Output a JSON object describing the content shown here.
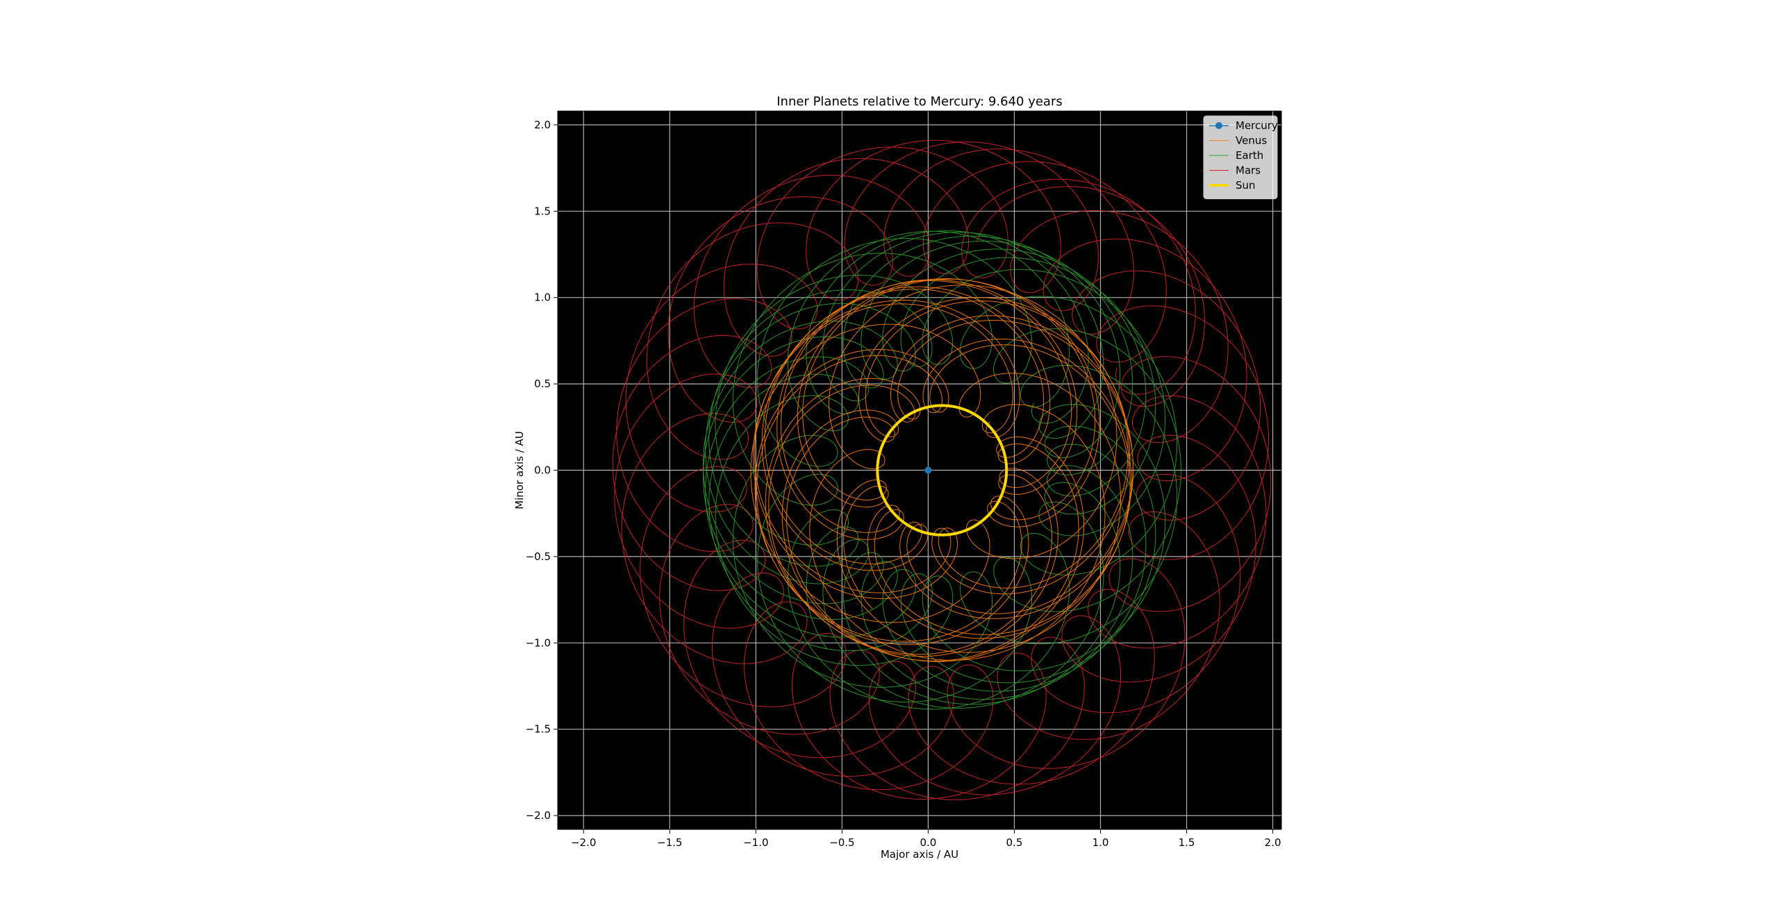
{
  "chart_data": {
    "type": "line",
    "title": "Inner Planets relative to Mercury: 9.640 years",
    "xlabel": "Major axis / AU",
    "ylabel": "Minor axis / AU",
    "xlim": [
      -2.15,
      2.05
    ],
    "ylim": [
      -2.08,
      2.08
    ],
    "grid": true,
    "background": "#000000",
    "legend_position": "top-right",
    "x_ticks": [
      {
        "value": -2.0,
        "label": "−2.0"
      },
      {
        "value": -1.5,
        "label": "−1.5"
      },
      {
        "value": -1.0,
        "label": "−1.0"
      },
      {
        "value": -0.5,
        "label": "−0.5"
      },
      {
        "value": 0.0,
        "label": "0.0"
      },
      {
        "value": 0.5,
        "label": "0.5"
      },
      {
        "value": 1.0,
        "label": "1.0"
      },
      {
        "value": 1.5,
        "label": "1.5"
      },
      {
        "value": 2.0,
        "label": "2.0"
      }
    ],
    "y_ticks": [
      {
        "value": -2.0,
        "label": "−2.0"
      },
      {
        "value": -1.5,
        "label": "−1.5"
      },
      {
        "value": -1.0,
        "label": "−1.0"
      },
      {
        "value": -0.5,
        "label": "−0.5"
      },
      {
        "value": 0.0,
        "label": "0.0"
      },
      {
        "value": 0.5,
        "label": "0.5"
      },
      {
        "value": 1.0,
        "label": "1.0"
      },
      {
        "value": 1.5,
        "label": "1.5"
      },
      {
        "value": 2.0,
        "label": "2.0"
      }
    ],
    "series": [
      {
        "name": "Mercury",
        "color": "#1f77b4",
        "marker": "circle",
        "x": [
          0.0
        ],
        "y": [
          0.0
        ]
      },
      {
        "name": "Venus",
        "color": "#ff7f0e",
        "orbit_radius_au": 0.723,
        "relative_radius_au": 0.387,
        "years": 9.64
      },
      {
        "name": "Earth",
        "color": "#2ca02c",
        "orbit_radius_au": 1.0,
        "relative_radius_au": 0.387,
        "years": 9.64
      },
      {
        "name": "Mars",
        "color": "#d62728",
        "orbit_radius_au": 1.524,
        "relative_radius_au": 0.387,
        "years": 9.64
      },
      {
        "name": "Sun",
        "color": "#ffd700",
        "center": [
          0.08,
          0.0
        ],
        "radius_au": 0.375
      }
    ]
  }
}
